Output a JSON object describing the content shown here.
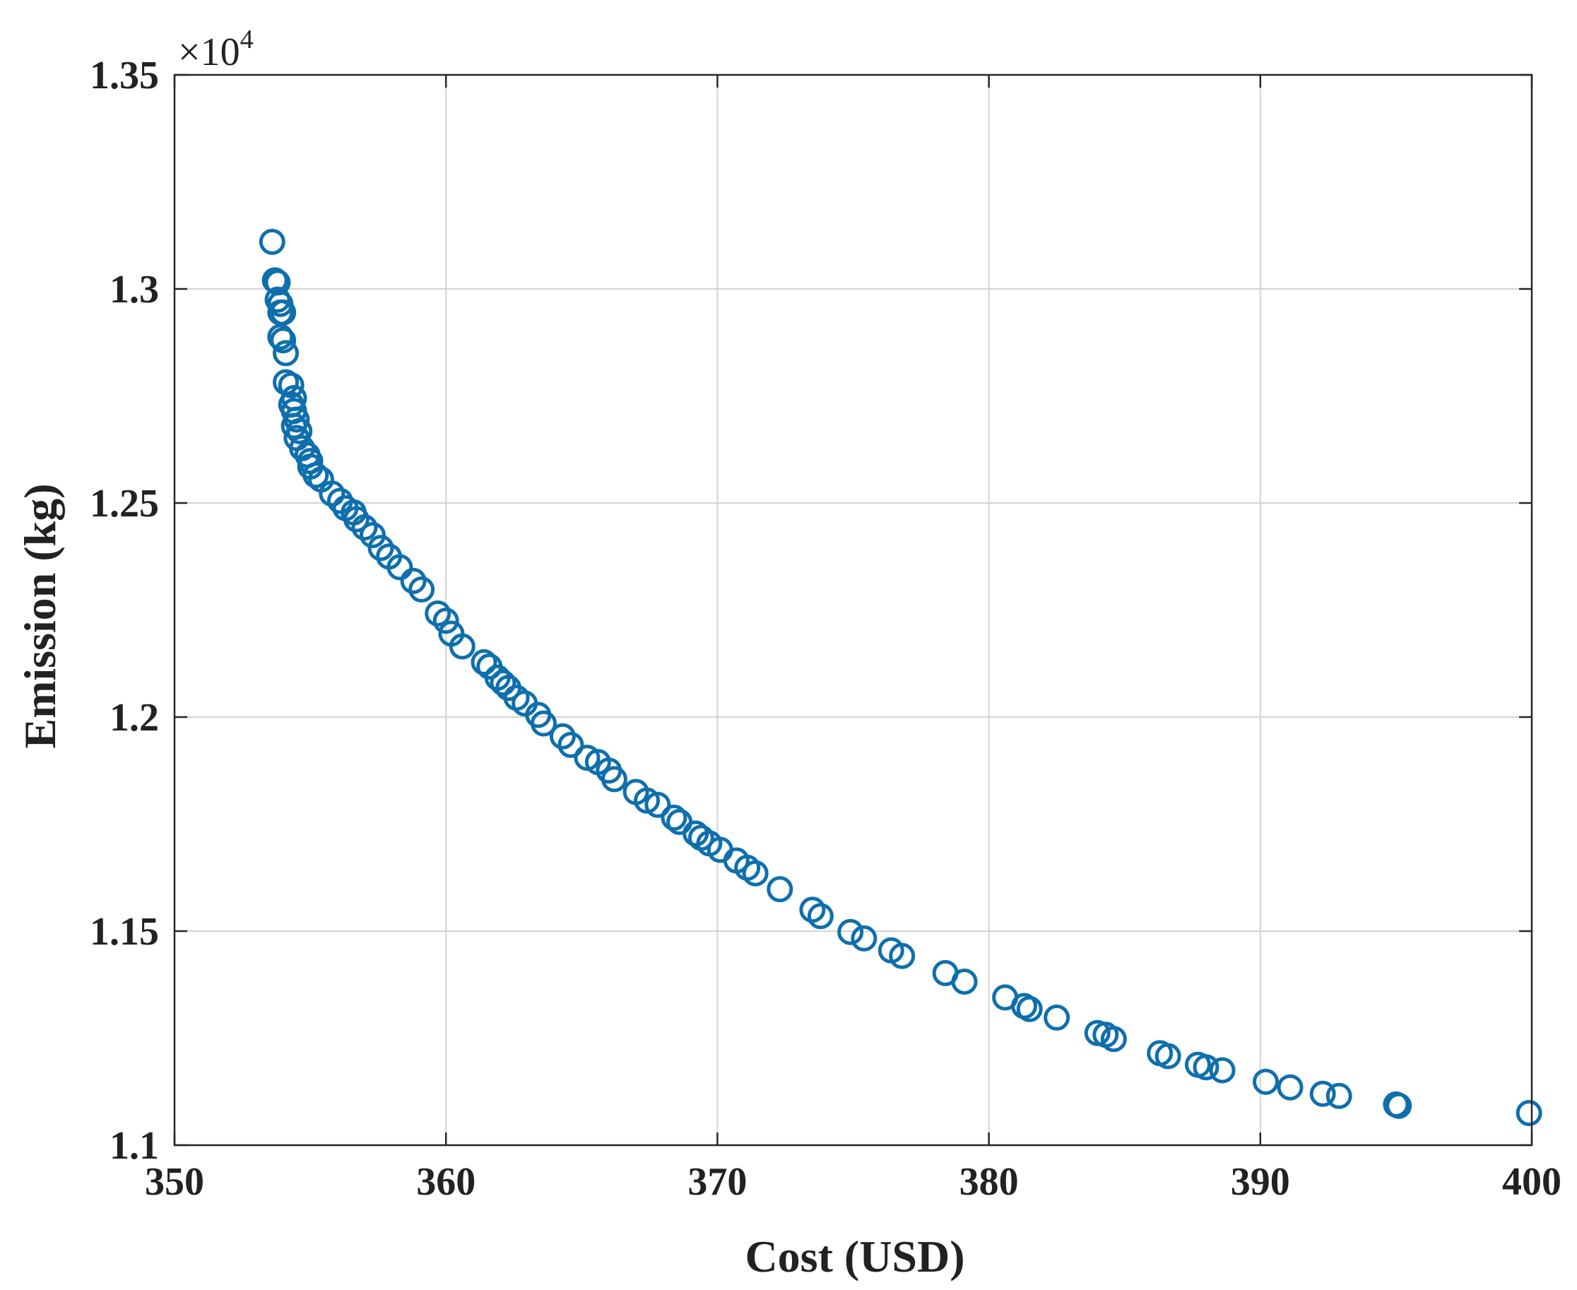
{
  "chart_data": {
    "type": "scatter",
    "xlabel": "Cost (USD)",
    "ylabel": "Emission (kg)",
    "xlim": [
      350,
      400
    ],
    "ylim": [
      1.1,
      1.35
    ],
    "x_ticks": [
      "350",
      "360",
      "370",
      "380",
      "390",
      "400"
    ],
    "y_ticks": [
      "1.1",
      "1.15",
      "1.2",
      "1.25",
      "1.3",
      "1.35"
    ],
    "y_exponent": {
      "base": "×10",
      "power": "4"
    },
    "grid": true,
    "marker": "circle-open",
    "color": "#0f6fad",
    "series": [
      {
        "points": [
          [
            353.6,
            1.311
          ],
          [
            353.7,
            1.302
          ],
          [
            353.8,
            1.3015
          ],
          [
            353.8,
            1.2975
          ],
          [
            353.9,
            1.2965
          ],
          [
            353.9,
            1.2945
          ],
          [
            354.0,
            1.2945
          ],
          [
            353.9,
            1.2888
          ],
          [
            354.0,
            1.288
          ],
          [
            354.1,
            1.285
          ],
          [
            354.1,
            1.2782
          ],
          [
            354.3,
            1.2775
          ],
          [
            354.4,
            1.2745
          ],
          [
            354.3,
            1.273
          ],
          [
            354.4,
            1.2715
          ],
          [
            354.5,
            1.2695
          ],
          [
            354.4,
            1.268
          ],
          [
            354.6,
            1.2668
          ],
          [
            354.5,
            1.2652
          ],
          [
            354.7,
            1.2628
          ],
          [
            354.9,
            1.2612
          ],
          [
            355.0,
            1.2598
          ],
          [
            355.0,
            1.2585
          ],
          [
            355.2,
            1.2565
          ],
          [
            355.4,
            1.2555
          ],
          [
            355.8,
            1.2522
          ],
          [
            356.1,
            1.2505
          ],
          [
            356.3,
            1.2488
          ],
          [
            356.6,
            1.2478
          ],
          [
            356.7,
            1.2462
          ],
          [
            357.0,
            1.2443
          ],
          [
            357.3,
            1.2425
          ],
          [
            357.6,
            1.2395
          ],
          [
            357.9,
            1.2375
          ],
          [
            358.3,
            1.235
          ],
          [
            358.8,
            1.2318
          ],
          [
            359.1,
            1.2298
          ],
          [
            359.7,
            1.2242
          ],
          [
            360.0,
            1.2225
          ],
          [
            360.2,
            1.2195
          ],
          [
            360.6,
            1.2165
          ],
          [
            361.4,
            1.2128
          ],
          [
            361.6,
            1.2118
          ],
          [
            361.9,
            1.2092
          ],
          [
            362.1,
            1.208
          ],
          [
            362.3,
            1.2068
          ],
          [
            362.6,
            1.2045
          ],
          [
            362.9,
            1.2032
          ],
          [
            363.4,
            1.2005
          ],
          [
            363.6,
            1.1985
          ],
          [
            364.3,
            1.1955
          ],
          [
            364.6,
            1.1935
          ],
          [
            365.2,
            1.1905
          ],
          [
            365.6,
            1.1895
          ],
          [
            366.0,
            1.1875
          ],
          [
            366.2,
            1.1855
          ],
          [
            367.0,
            1.1825
          ],
          [
            367.4,
            1.1805
          ],
          [
            367.8,
            1.1795
          ],
          [
            368.4,
            1.1765
          ],
          [
            368.6,
            1.1755
          ],
          [
            369.2,
            1.1728
          ],
          [
            369.4,
            1.1718
          ],
          [
            369.7,
            1.1705
          ],
          [
            370.1,
            1.169
          ],
          [
            370.7,
            1.1665
          ],
          [
            371.1,
            1.1648
          ],
          [
            371.4,
            1.1635
          ],
          [
            372.3,
            1.1598
          ],
          [
            373.5,
            1.155
          ],
          [
            373.8,
            1.1535
          ],
          [
            374.9,
            1.1498
          ],
          [
            375.4,
            1.1483
          ],
          [
            376.4,
            1.1455
          ],
          [
            376.8,
            1.1442
          ],
          [
            378.4,
            1.1402
          ],
          [
            379.1,
            1.1382
          ],
          [
            380.6,
            1.1345
          ],
          [
            381.3,
            1.1325
          ],
          [
            381.5,
            1.1318
          ],
          [
            382.5,
            1.1298
          ],
          [
            384.0,
            1.1262
          ],
          [
            384.3,
            1.1258
          ],
          [
            384.6,
            1.1248
          ],
          [
            386.3,
            1.1215
          ],
          [
            386.6,
            1.1208
          ],
          [
            387.7,
            1.1188
          ],
          [
            388.0,
            1.1182
          ],
          [
            388.6,
            1.1175
          ],
          [
            390.2,
            1.1148
          ],
          [
            391.1,
            1.1135
          ],
          [
            392.3,
            1.112
          ],
          [
            392.9,
            1.1115
          ],
          [
            395.0,
            1.1095
          ],
          [
            395.1,
            1.1092
          ],
          [
            399.9,
            1.1075
          ]
        ]
      }
    ]
  }
}
